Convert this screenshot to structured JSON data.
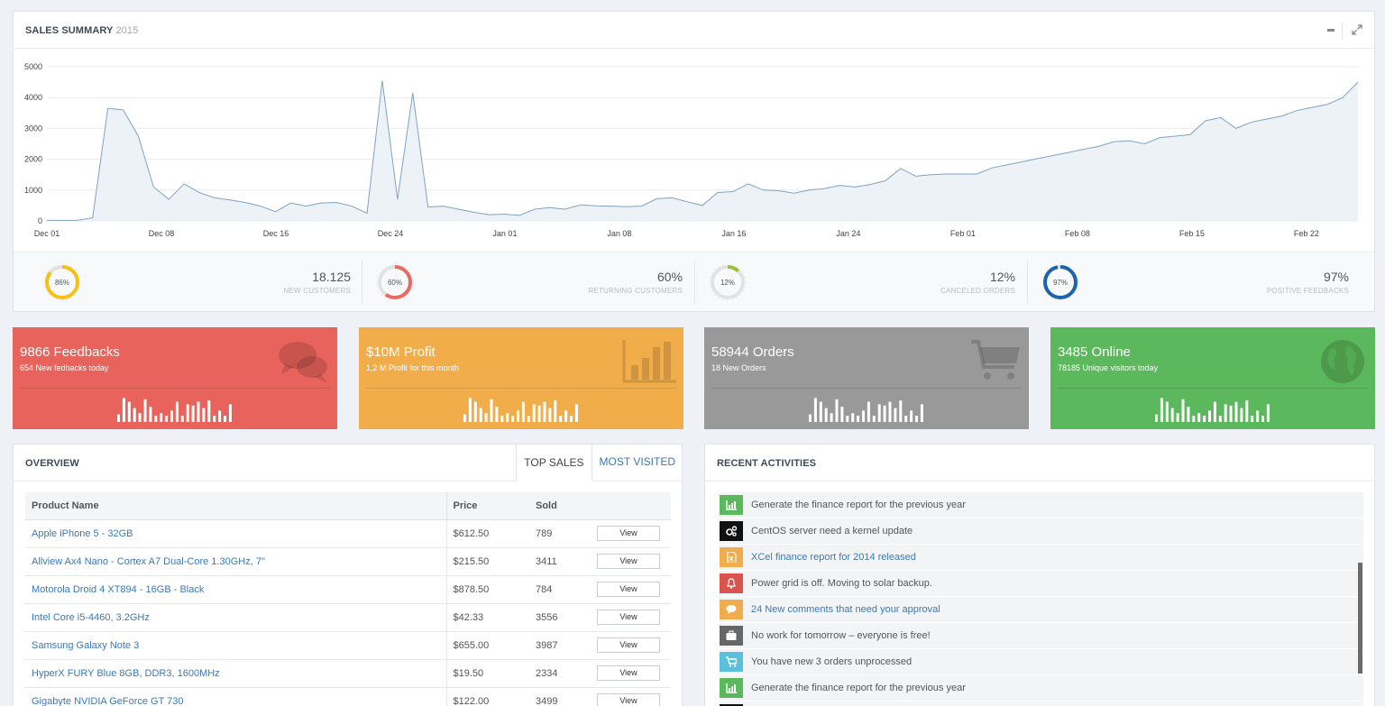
{
  "sales": {
    "title": "SALES SUMMARY",
    "year": "2015"
  },
  "chart_data": {
    "type": "area",
    "title": "",
    "xlabel": "",
    "ylabel": "",
    "ylim": [
      0,
      5000
    ],
    "yticks": [
      "5000",
      "4000",
      "3000",
      "2000",
      "1000",
      "0"
    ],
    "xtick_labels": [
      "Dec 01",
      "Dec 08",
      "Dec 16",
      "Dec 24",
      "Jan 01",
      "Jan 08",
      "Jan 16",
      "Jan 24",
      "Feb 01",
      "Feb 08",
      "Feb 15",
      "Feb 22"
    ],
    "grid": true,
    "series": [
      {
        "values": [
          20,
          20,
          20,
          100,
          3650,
          3600,
          2750,
          1100,
          700,
          1200,
          920,
          750,
          680,
          600,
          480,
          300,
          580,
          480,
          580,
          600,
          480,
          250,
          4550,
          700,
          4150,
          450,
          480,
          380,
          280,
          200,
          220,
          180,
          380,
          430,
          380,
          520,
          490,
          480,
          460,
          480,
          720,
          750,
          620,
          500,
          920,
          950,
          1200,
          1000,
          980,
          900,
          1000,
          1050,
          1150,
          1100,
          1180,
          1300,
          1700,
          1450,
          1500,
          1520,
          1520,
          1520,
          1720,
          1820,
          1920,
          2020,
          2120,
          2220,
          2320,
          2420,
          2570,
          2600,
          2500,
          2700,
          2750,
          2800,
          3250,
          3350,
          3000,
          3200,
          3300,
          3400,
          3580,
          3680,
          3780,
          4000,
          4500
        ]
      }
    ]
  },
  "stats": [
    {
      "percent": 86,
      "center": "86%",
      "value": "18.125",
      "label": "NEW CUSTOMERS",
      "color": "#f5c116"
    },
    {
      "percent": 60,
      "center": "60%",
      "value": "60%",
      "label": "RETURNING CUSTOMERS",
      "color": "#e86b63"
    },
    {
      "percent": 12,
      "center": "12%",
      "value": "12%",
      "label": "CANCELED ORDERS",
      "color": "#9bbf3a"
    },
    {
      "percent": 97,
      "center": "97%",
      "value": "97%",
      "label": "POSITIVE FEEDBACKS",
      "color": "#1c64ab"
    }
  ],
  "tiles": [
    {
      "title": "9866 Feedbacks",
      "subtitle": "654 New fedbacks today",
      "color": "#e8635b",
      "icon": "comments-icon"
    },
    {
      "title": "$10M Profit",
      "subtitle": "1,2 M Profit for this month",
      "color": "#f2ad4b",
      "icon": "bar-chart-icon"
    },
    {
      "title": "58944 Orders",
      "subtitle": "18 New Orders",
      "color": "#999999",
      "icon": "shopping-cart-icon"
    },
    {
      "title": "3485 Online",
      "subtitle": "78185 Unique visitors today",
      "color": "#5cb85c",
      "icon": "globe-icon"
    }
  ],
  "sparkline": [
    0.3,
    0.95,
    0.8,
    0.55,
    0.35,
    0.9,
    0.6,
    0.25,
    0.35,
    0.25,
    0.45,
    0.8,
    0.25,
    0.7,
    0.65,
    0.8,
    0.55,
    0.85,
    0.25,
    0.45,
    0.25,
    0.7
  ],
  "overview": {
    "title": "OVERVIEW",
    "tabs": [
      "TOP SALES",
      "MOST VISITED"
    ],
    "columns": [
      "Product Name",
      "Price",
      "Sold",
      ""
    ],
    "view_label": "View",
    "rows": [
      {
        "name": "Apple iPhone 5 - 32GB",
        "price": "$612.50",
        "sold": "789"
      },
      {
        "name": "Allview Ax4 Nano - Cortex A7 Dual-Core 1.30GHz, 7\"",
        "price": "$215.50",
        "sold": "3411"
      },
      {
        "name": "Motorola Droid 4 XT894 - 16GB - Black",
        "price": "$878.50",
        "sold": "784"
      },
      {
        "name": "Intel Core i5-4460, 3.2GHz",
        "price": "$42.33",
        "sold": "3556"
      },
      {
        "name": "Samsung Galaxy Note 3",
        "price": "$655.00",
        "sold": "3987"
      },
      {
        "name": "HyperX FURY Blue 8GB, DDR3, 1600MHz",
        "price": "$19.50",
        "sold": "2334"
      },
      {
        "name": "Gigabyte NVIDIA GeForce GT 730",
        "price": "$122.00",
        "sold": "3499"
      }
    ]
  },
  "activities": {
    "title": "RECENT ACTIVITIES",
    "items": [
      {
        "text": "Generate the finance report for the previous year",
        "color": "#5cb85c",
        "icon": "bar-chart-icon",
        "link": false
      },
      {
        "text": "CentOS server need a kernel update",
        "color": "#111111",
        "icon": "cogs-icon",
        "link": false
      },
      {
        "text": "XCel finance report for 2014 released",
        "color": "#f0ad4e",
        "icon": "file-excel-icon",
        "link": true
      },
      {
        "text": "Power grid is off. Moving to solar backup.",
        "color": "#d9534f",
        "icon": "bell-icon",
        "link": false
      },
      {
        "text": "24 New comments that need your approval",
        "color": "#f0ad4e",
        "icon": "comment-icon",
        "link": true
      },
      {
        "text": "No work for tomorrow – everyone is free!",
        "color": "#666666",
        "icon": "briefcase-icon",
        "link": false
      },
      {
        "text": "You have new 3 orders unprocessed",
        "color": "#5bc0de",
        "icon": "shopping-cart-icon",
        "link": false
      },
      {
        "text": "Generate the finance report for the previous year",
        "color": "#5cb85c",
        "icon": "bar-chart-icon",
        "link": false
      },
      {
        "text": "",
        "color": "#111111",
        "icon": "cogs-icon",
        "link": false
      }
    ]
  }
}
